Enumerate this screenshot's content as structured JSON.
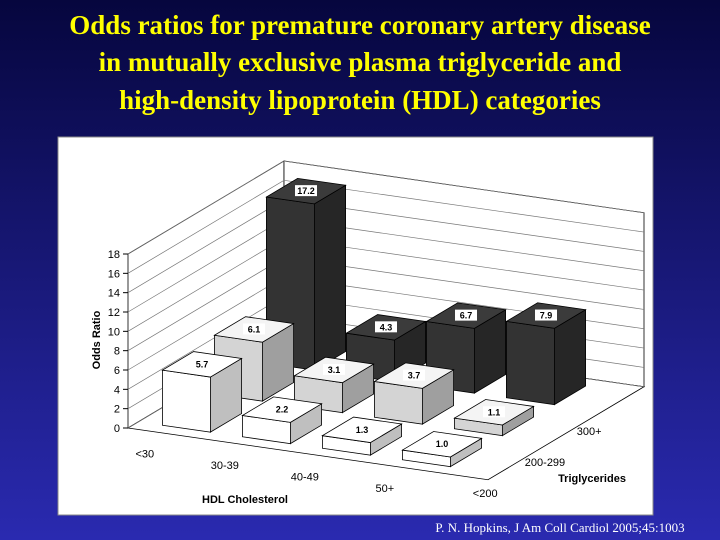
{
  "slide": {
    "title_lines": [
      "Odds ratios for premature coronary artery disease",
      "in mutually exclusive plasma triglyceride and",
      "high-density lipoprotein (HDL) categories"
    ],
    "citation": "P. N. Hopkins, J Am Coll Cardiol 2005;45:1003"
  },
  "chart_data": {
    "type": "bar3d",
    "y_label": "Odds Ratio",
    "x_label": "HDL Cholesterol",
    "z_label": "Triglycerides",
    "categories": [
      "<30",
      "30-39",
      "40-49",
      "50+"
    ],
    "series": [
      {
        "name": "<200",
        "color": "#ffffff",
        "values": [
          5.7,
          2.2,
          1.3,
          1.0
        ],
        "value_labels": [
          "5.7",
          "2.2",
          "1.3",
          "1.0"
        ]
      },
      {
        "name": "200-299",
        "color": "#d4d4d4",
        "values": [
          6.1,
          3.1,
          3.7,
          1.1
        ],
        "value_labels": [
          "6.1",
          "3.1",
          "3.7",
          "1.1"
        ]
      },
      {
        "name": "300+",
        "color": "#333333",
        "values": [
          17.2,
          4.3,
          6.7,
          7.9
        ],
        "value_labels": [
          "17.2",
          "4.3",
          "6.7",
          "7.9"
        ]
      }
    ],
    "ylim": [
      0,
      18
    ],
    "yticks": [
      0,
      2,
      4,
      6,
      8,
      10,
      12,
      14,
      16,
      18
    ],
    "grid": true
  }
}
